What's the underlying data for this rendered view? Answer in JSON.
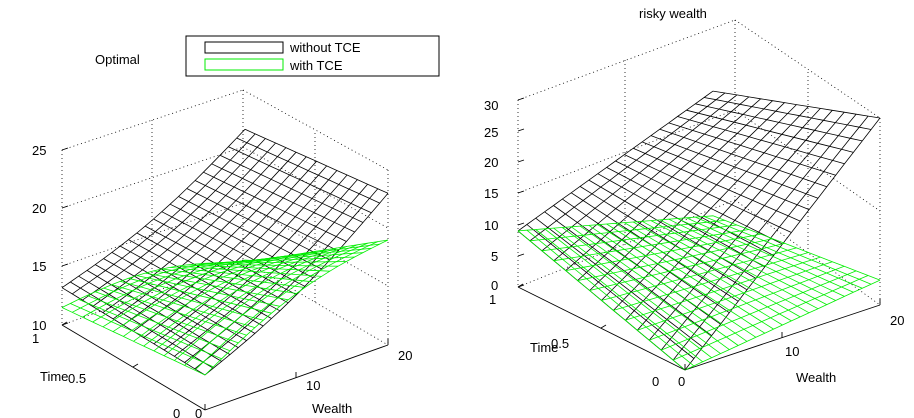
{
  "colors": {
    "without_tce": "#000000",
    "with_tce": "#00ee00",
    "background": "#ffffff"
  },
  "chart_data": [
    {
      "type": "surface",
      "title": "Optimal",
      "xlabel": "Wealth",
      "ylabel": "Time",
      "zlabel": "",
      "x_range": [
        0,
        20
      ],
      "y_range": [
        0,
        1
      ],
      "zlim": [
        10,
        25
      ],
      "z_ticks": [
        "10",
        "15",
        "20",
        "25"
      ],
      "x_ticks": [
        "0",
        "10",
        "20"
      ],
      "y_ticks": [
        "0",
        "0.5",
        "1"
      ],
      "grid": true,
      "legend": {
        "placement": "top",
        "entries": [
          "without TCE",
          "with TCE"
        ]
      },
      "series": [
        {
          "name": "without TCE",
          "color": "#000000",
          "corner_values": {
            "wealth_0_time_0": 13.0,
            "wealth_20_time_0": 23.0,
            "wealth_0_time_1": 13.2,
            "wealth_20_time_1": 21.2
          }
        },
        {
          "name": "with TCE",
          "color": "#00ee00",
          "corner_values": {
            "wealth_0_time_0": 13.0,
            "wealth_20_time_0": 19.0,
            "wealth_0_time_1": 11.5,
            "wealth_20_time_1": 9.8
          }
        }
      ]
    },
    {
      "type": "surface",
      "title": "risky wealth",
      "xlabel": "Wealth",
      "ylabel": "Time",
      "zlabel": "",
      "x_range": [
        0,
        20
      ],
      "y_range": [
        0,
        1
      ],
      "zlim": [
        0,
        30
      ],
      "z_ticks": [
        "0",
        "5",
        "10",
        "15",
        "20",
        "25",
        "30"
      ],
      "x_ticks": [
        "0",
        "10",
        "20"
      ],
      "y_ticks": [
        "0",
        "0.5",
        "1"
      ],
      "grid": true,
      "series": [
        {
          "name": "without TCE",
          "color": "#000000",
          "corner_values": {
            "wealth_0_time_0": 0,
            "wealth_20_time_0": 30,
            "wealth_0_time_1": 9.0,
            "wealth_20_time_1": 21.0
          }
        },
        {
          "name": "with TCE",
          "color": "#00ee00",
          "corner_values": {
            "wealth_0_time_0": 0,
            "wealth_20_time_0": 4,
            "wealth_0_time_1": 9.0,
            "wealth_20_time_1": 1.0
          }
        }
      ]
    }
  ]
}
